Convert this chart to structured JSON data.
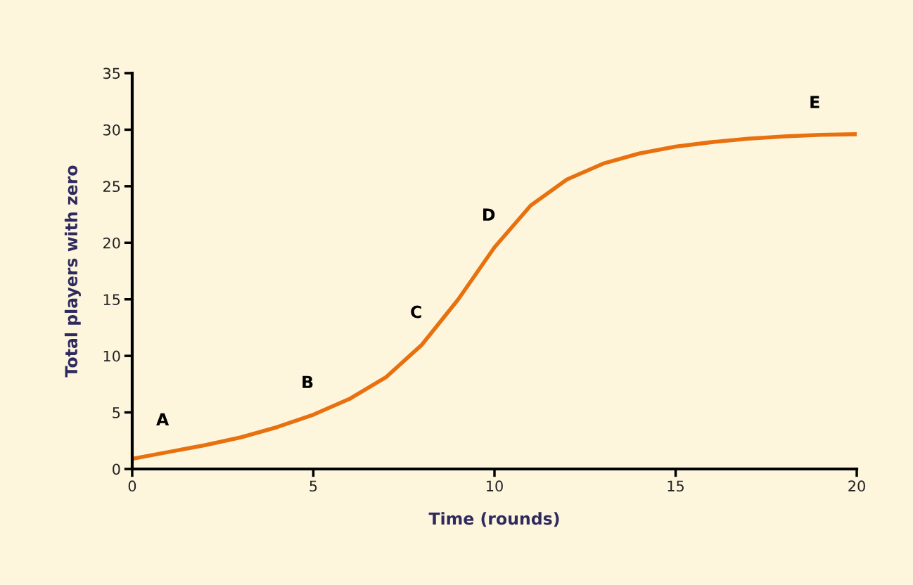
{
  "chart_data": {
    "type": "line",
    "xlabel": "Time (rounds)",
    "ylabel": "Total players with zero",
    "x": [
      0,
      1,
      2,
      3,
      4,
      5,
      6,
      7,
      8,
      9,
      10,
      11,
      12,
      13,
      14,
      15,
      16,
      17,
      18,
      19,
      20
    ],
    "series": [
      {
        "color": "#e8700f",
        "values": [
          0.9,
          1.5,
          2.1,
          2.8,
          3.7,
          4.8,
          6.2,
          8.1,
          11.0,
          15.0,
          19.6,
          23.3,
          25.6,
          27.0,
          27.9,
          28.5,
          28.9,
          29.2,
          29.4,
          29.55,
          29.6
        ]
      }
    ],
    "xlim": [
      0,
      20
    ],
    "xticks": [
      0,
      5,
      10,
      15,
      20
    ],
    "ylim": [
      0,
      35
    ],
    "yticks": [
      0,
      5,
      10,
      15,
      20,
      25,
      30,
      35
    ],
    "grid": false,
    "legend": false,
    "marker": "none",
    "line_style": "solid",
    "annotations": [
      {
        "text": "A",
        "x": 1,
        "y": 1.5
      },
      {
        "text": "B",
        "x": 5,
        "y": 4.8
      },
      {
        "text": "C",
        "x": 8,
        "y": 11.0
      },
      {
        "text": "D",
        "x": 10,
        "y": 19.6
      },
      {
        "text": "E",
        "x": 19,
        "y": 29.55
      }
    ]
  }
}
